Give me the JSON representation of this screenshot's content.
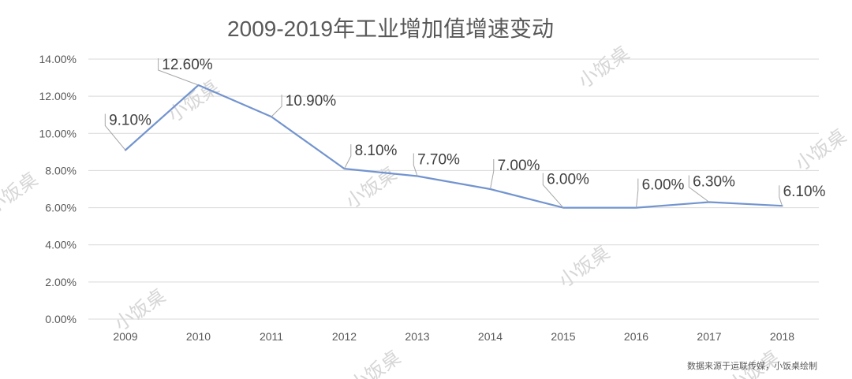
{
  "chart_data": {
    "type": "line",
    "title": "2009-2019年工业增加值增速变动",
    "categories": [
      "2009",
      "2010",
      "2011",
      "2012",
      "2013",
      "2014",
      "2015",
      "2016",
      "2017",
      "2018"
    ],
    "series": [
      {
        "values": [
          9.1,
          12.6,
          10.9,
          8.1,
          7.7,
          7.0,
          6.0,
          6.0,
          6.3,
          6.1
        ],
        "labels": [
          "9.10%",
          "12.60%",
          "10.90%",
          "8.10%",
          "7.70%",
          "7.00%",
          "6.00%",
          "6.00%",
          "6.30%",
          "6.10%"
        ]
      }
    ],
    "y_ticks": [
      "0.00%",
      "2.00%",
      "4.00%",
      "6.00%",
      "8.00%",
      "10.00%",
      "12.00%",
      "14.00%"
    ],
    "ylim": [
      0,
      14
    ],
    "grid": true,
    "line_color": "#7294cf",
    "source_note": "数据来源于运联传媒，小饭桌绘制",
    "watermark": "小饭桌"
  }
}
